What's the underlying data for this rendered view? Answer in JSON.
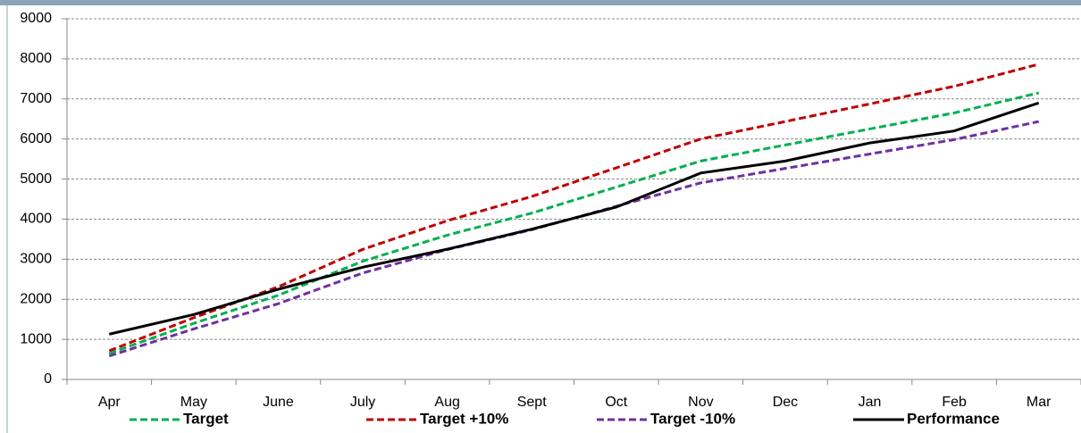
{
  "chart_data": {
    "type": "line",
    "categories": [
      "Apr",
      "May",
      "June",
      "July",
      "Aug",
      "Sept",
      "Oct",
      "Nov",
      "Dec",
      "Jan",
      "Feb",
      "Mar"
    ],
    "series": [
      {
        "name": "Target",
        "color": "#00b050",
        "dash": true,
        "values": [
          650,
          1400,
          2100,
          2950,
          3600,
          4150,
          4800,
          5450,
          5850,
          6250,
          6650,
          7150
        ]
      },
      {
        "name": "Target +10%",
        "color": "#c00000",
        "dash": true,
        "values": [
          715,
          1540,
          2310,
          3245,
          3960,
          4565,
          5280,
          6000,
          6435,
          6875,
          7315,
          7865
        ]
      },
      {
        "name": "Target -10%",
        "color": "#7030a0",
        "dash": true,
        "values": [
          585,
          1260,
          1890,
          2655,
          3240,
          3735,
          4320,
          4905,
          5265,
          5625,
          5985,
          6435
        ]
      },
      {
        "name": "Performance",
        "color": "#000000",
        "dash": false,
        "values": [
          1130,
          1620,
          2250,
          2800,
          3250,
          3750,
          4300,
          5150,
          5450,
          5900,
          6200,
          6900
        ]
      }
    ],
    "ylim": [
      0,
      9000
    ],
    "yticks": [
      0,
      1000,
      2000,
      3000,
      4000,
      5000,
      6000,
      7000,
      8000,
      9000
    ],
    "grid": true,
    "legend": "bottom"
  }
}
